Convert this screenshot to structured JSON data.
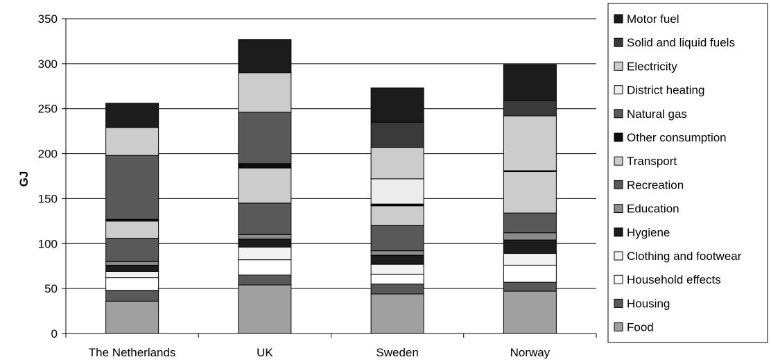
{
  "chart_data": {
    "type": "bar",
    "stacked": true,
    "title": "",
    "xlabel": "",
    "ylabel": "GJ",
    "ylim": [
      0,
      350
    ],
    "yticks": [
      0,
      50,
      100,
      150,
      200,
      250,
      300,
      350
    ],
    "grid": true,
    "legend_position": "right",
    "categories": [
      "The Netherlands",
      "UK",
      "Sweden",
      "Norway"
    ],
    "series": [
      {
        "name": "Food",
        "color": "#a0a0a0",
        "values": [
          36,
          54,
          44,
          47
        ]
      },
      {
        "name": "Housing",
        "color": "#595959",
        "values": [
          12,
          11,
          11,
          10
        ]
      },
      {
        "name": "Household effects",
        "color": "#ffffff",
        "values": [
          14,
          17,
          11,
          19
        ]
      },
      {
        "name": "Clothing and footwear",
        "color": "#f2f2f2",
        "values": [
          7,
          14,
          11,
          13
        ]
      },
      {
        "name": "Hygiene",
        "color": "#1c1c1c",
        "values": [
          7,
          9,
          10,
          15
        ]
      },
      {
        "name": "Education",
        "color": "#8c8c8c",
        "values": [
          4,
          5,
          5,
          8
        ]
      },
      {
        "name": "Recreation",
        "color": "#595959",
        "values": [
          26,
          35,
          28,
          22
        ]
      },
      {
        "name": "Transport",
        "color": "#cccccc",
        "values": [
          19,
          39,
          22,
          46
        ]
      },
      {
        "name": "Other consumption",
        "color": "#0d0d0d",
        "values": [
          2,
          5,
          2,
          1
        ]
      },
      {
        "name": "Natural gas",
        "color": "#595959",
        "values": [
          71,
          57,
          0,
          0
        ]
      },
      {
        "name": "District heating",
        "color": "#ececec",
        "values": [
          0,
          0,
          28,
          0
        ]
      },
      {
        "name": "Electricity",
        "color": "#cccccc",
        "values": [
          31,
          44,
          35,
          61
        ]
      },
      {
        "name": "Solid and liquid fuels",
        "color": "#3a3a3a",
        "values": [
          0,
          0,
          28,
          17
        ]
      },
      {
        "name": "Motor fuel",
        "color": "#1c1c1c",
        "values": [
          27,
          37,
          38,
          40
        ]
      }
    ],
    "legend_order": [
      "Motor fuel",
      "Solid and liquid fuels",
      "Electricity",
      "District heating",
      "Natural gas",
      "Other consumption",
      "Transport",
      "Recreation",
      "Education",
      "Hygiene",
      "Clothing and footwear",
      "Household effects",
      "Housing",
      "Food"
    ]
  }
}
